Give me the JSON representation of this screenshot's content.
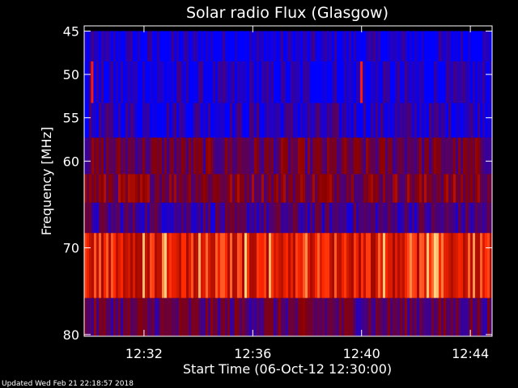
{
  "chart_data": {
    "type": "heatmap",
    "title": "Solar radio Flux (Glasgow)",
    "xlabel": "Start Time (06-Oct-12 12:30:00)",
    "ylabel": "Frequency [MHz]",
    "x_ticks": [
      "12:32",
      "12:36",
      "12:40",
      "12:44"
    ],
    "x_tick_minutes": [
      2,
      6,
      10,
      14
    ],
    "xlim_minutes": [
      -0.2,
      14.8
    ],
    "y_ticks": [
      45,
      50,
      55,
      60,
      70,
      80
    ],
    "ylim": [
      44.4,
      80.2
    ],
    "bands": [
      {
        "from": 45.0,
        "to": 48.5,
        "level": 0.05
      },
      {
        "from": 48.5,
        "to": 53.3,
        "level": 0.06
      },
      {
        "from": 53.3,
        "to": 57.3,
        "level": 0.12
      },
      {
        "from": 57.3,
        "to": 61.5,
        "level": 0.32
      },
      {
        "from": 61.5,
        "to": 64.8,
        "level": 0.4
      },
      {
        "from": 64.8,
        "to": 68.3,
        "level": 0.22
      },
      {
        "from": 68.3,
        "to": 75.8,
        "level": 0.68
      },
      {
        "from": 75.8,
        "to": 80.2,
        "level": 0.3
      }
    ],
    "colors": {
      "low": "#0000ff",
      "mid": "#8b0000",
      "high": "#ff2a00",
      "peak": "#ffd080",
      "axis": "#ffffff",
      "background": "#000000"
    }
  },
  "footer": {
    "updated": "Updated Wed Feb 21 22:18:57 2018"
  }
}
